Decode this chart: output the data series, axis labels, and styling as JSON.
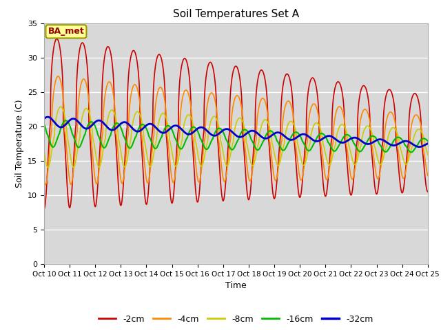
{
  "title": "Soil Temperatures Set A",
  "xlabel": "Time",
  "ylabel": "Soil Temperature (C)",
  "ylim": [
    0,
    35
  ],
  "xlim_start": 0,
  "xlim_end": 15,
  "annotation": "BA_met",
  "xtick_labels": [
    "Oct 10",
    "Oct 11",
    "Oct 12",
    "Oct 13",
    "Oct 14",
    "Oct 15",
    "Oct 16",
    "Oct 17",
    "Oct 18",
    "Oct 19",
    "Oct 20",
    "Oct 21",
    "Oct 22",
    "Oct 23",
    "Oct 24",
    "Oct 25"
  ],
  "series_labels": [
    "-2cm",
    "-4cm",
    "-8cm",
    "-16cm",
    "-32cm"
  ],
  "series_colors": [
    "#cc0000",
    "#ff8800",
    "#cccc00",
    "#00bb00",
    "#0000cc"
  ],
  "series_linewidths": [
    1.2,
    1.2,
    1.2,
    1.5,
    2.0
  ],
  "bg_color": "#d8d8d8",
  "grid_color": "#ffffff",
  "fig_color": "#ffffff"
}
